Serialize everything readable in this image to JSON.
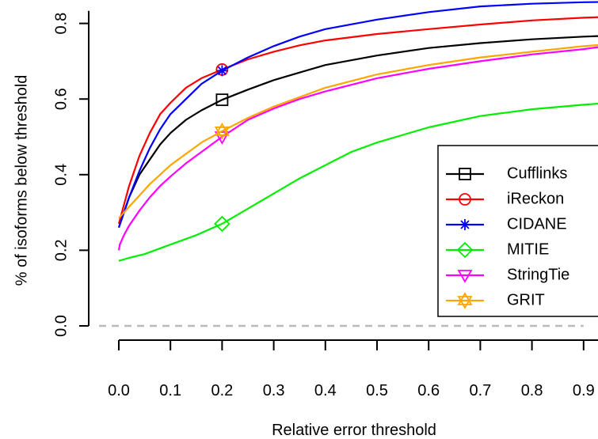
{
  "chart_data": {
    "type": "line",
    "title": "",
    "xlabel": "Relative error threshold",
    "ylabel": "% of isoforms below threshold",
    "xlim": [
      0,
      1.0
    ],
    "ylim": [
      0,
      0.85
    ],
    "x_ticks": [
      "0.0",
      "0.1",
      "0.2",
      "0.3",
      "0.4",
      "0.5",
      "0.6",
      "0.7",
      "0.8",
      "0.9"
    ],
    "y_ticks": [
      "0.0",
      "0.2",
      "0.4",
      "0.6",
      "0.8"
    ],
    "grid": false,
    "legend_position": "bottom-right",
    "reference_line": {
      "y": 0.0,
      "style": "dashed",
      "color": "#bbbbbb"
    },
    "series": [
      {
        "name": "Cufflinks",
        "color": "#000000",
        "marker": "square",
        "marker_at": [
          0.2,
          0.598
        ],
        "x": [
          0.0,
          0.01,
          0.02,
          0.04,
          0.06,
          0.08,
          0.1,
          0.13,
          0.16,
          0.2,
          0.25,
          0.3,
          0.35,
          0.4,
          0.5,
          0.6,
          0.7,
          0.8,
          0.9,
          1.0
        ],
        "y": [
          0.26,
          0.3,
          0.34,
          0.4,
          0.44,
          0.48,
          0.51,
          0.545,
          0.57,
          0.598,
          0.625,
          0.65,
          0.67,
          0.69,
          0.715,
          0.735,
          0.748,
          0.758,
          0.765,
          0.77
        ]
      },
      {
        "name": "iReckon",
        "color": "#ff0000",
        "marker": "circle",
        "marker_at": [
          0.2,
          0.678
        ],
        "x": [
          0.0,
          0.01,
          0.02,
          0.04,
          0.06,
          0.08,
          0.1,
          0.13,
          0.16,
          0.2,
          0.25,
          0.3,
          0.35,
          0.4,
          0.5,
          0.6,
          0.7,
          0.8,
          0.9,
          1.0
        ],
        "y": [
          0.27,
          0.32,
          0.37,
          0.45,
          0.51,
          0.56,
          0.59,
          0.63,
          0.655,
          0.678,
          0.705,
          0.725,
          0.742,
          0.755,
          0.772,
          0.785,
          0.797,
          0.808,
          0.815,
          0.82
        ]
      },
      {
        "name": "CIDANE",
        "color": "#0000ff",
        "marker": "asterisk",
        "marker_at": [
          0.2,
          0.675
        ],
        "x": [
          0.0,
          0.01,
          0.02,
          0.04,
          0.06,
          0.08,
          0.1,
          0.13,
          0.16,
          0.2,
          0.25,
          0.3,
          0.35,
          0.4,
          0.5,
          0.6,
          0.7,
          0.8,
          0.9,
          1.0
        ],
        "y": [
          0.26,
          0.3,
          0.34,
          0.41,
          0.47,
          0.52,
          0.56,
          0.6,
          0.64,
          0.675,
          0.71,
          0.74,
          0.765,
          0.785,
          0.81,
          0.83,
          0.845,
          0.852,
          0.856,
          0.858
        ]
      },
      {
        "name": "MITIE",
        "color": "#00ee00",
        "marker": "diamond",
        "marker_at": [
          0.2,
          0.27
        ],
        "x": [
          0.0,
          0.02,
          0.05,
          0.1,
          0.15,
          0.2,
          0.25,
          0.3,
          0.35,
          0.4,
          0.45,
          0.5,
          0.6,
          0.7,
          0.8,
          0.9,
          1.0
        ],
        "y": [
          0.172,
          0.18,
          0.19,
          0.215,
          0.24,
          0.27,
          0.31,
          0.35,
          0.39,
          0.425,
          0.46,
          0.485,
          0.525,
          0.555,
          0.573,
          0.585,
          0.595
        ]
      },
      {
        "name": "StringTie",
        "color": "#ff00ff",
        "marker": "triangle-down",
        "marker_at": [
          0.2,
          0.5
        ],
        "x": [
          0.0,
          0.002,
          0.01,
          0.02,
          0.04,
          0.06,
          0.08,
          0.1,
          0.13,
          0.16,
          0.2,
          0.25,
          0.3,
          0.35,
          0.4,
          0.5,
          0.6,
          0.7,
          0.8,
          0.9,
          0.97,
          1.0
        ],
        "y": [
          0.2,
          0.215,
          0.24,
          0.265,
          0.305,
          0.34,
          0.37,
          0.395,
          0.43,
          0.46,
          0.5,
          0.545,
          0.575,
          0.6,
          0.62,
          0.655,
          0.68,
          0.7,
          0.718,
          0.732,
          0.745,
          0.755
        ]
      },
      {
        "name": "GRIT",
        "color": "#ffa500",
        "marker": "star-of-david",
        "marker_at": [
          0.2,
          0.515
        ],
        "x": [
          0.0,
          0.01,
          0.02,
          0.04,
          0.06,
          0.08,
          0.1,
          0.13,
          0.16,
          0.2,
          0.25,
          0.3,
          0.35,
          0.4,
          0.5,
          0.6,
          0.7,
          0.8,
          0.9,
          1.0
        ],
        "y": [
          0.285,
          0.3,
          0.315,
          0.345,
          0.375,
          0.4,
          0.425,
          0.455,
          0.485,
          0.515,
          0.55,
          0.58,
          0.605,
          0.63,
          0.665,
          0.69,
          0.71,
          0.725,
          0.74,
          0.75
        ]
      }
    ]
  }
}
